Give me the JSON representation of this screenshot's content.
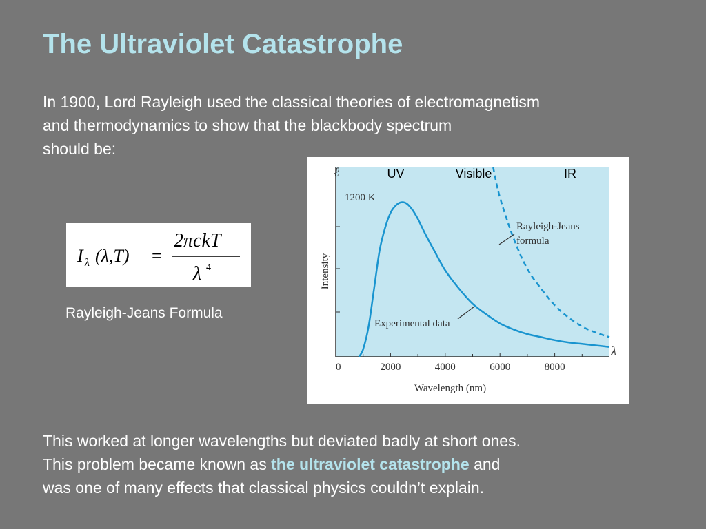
{
  "slide": {
    "title": "The Ultraviolet Catastrophe",
    "intro_lines": [
      "In 1900, Lord Rayleigh used the classical theories of electromagnetism",
      "and thermodynamics to show that the blackbody spectrum",
      "should be:"
    ],
    "formula": {
      "lhs_symbol": "I",
      "lhs_subscript": "λ",
      "lhs_args": "(λ,T)",
      "equals": "=",
      "numerator": "2πckT",
      "denominator_base": "λ",
      "denominator_exponent": "4"
    },
    "formula_caption": "Rayleigh-Jeans Formula",
    "outro": {
      "line1": "This worked at longer wavelengths but deviated badly at short ones.",
      "line2_before": "This problem became known as ",
      "line2_highlight": "the ultraviolet catastrophe",
      "line2_after": " and",
      "line3": "was one of many effects that classical physics couldn’t explain."
    },
    "colors": {
      "background": "#777777",
      "title": "#b4e3ec",
      "highlight": "#b4e3ec",
      "plot_background": "#c4e6f1",
      "curve": "#1994cf"
    }
  },
  "chart_data": {
    "type": "line",
    "ylabel": "Intensity",
    "y_axis_symbol": "ℓ",
    "xlabel": "Wavelength (nm)",
    "x_axis_symbol": "λ",
    "xlim": [
      0,
      10000
    ],
    "x_ticks": [
      0,
      2000,
      4000,
      6000,
      8000
    ],
    "x_tick_labels": [
      "0",
      "2000",
      "4000",
      "6000",
      "8000"
    ],
    "y_units": "arbitrary",
    "ylim": [
      0,
      1.25
    ],
    "temperature_label": "1200 K",
    "region_labels": [
      "UV",
      "Visible",
      "IR"
    ],
    "grid": false,
    "series": [
      {
        "name": "Experimental data",
        "style": "solid",
        "x": [
          850,
          1000,
          1200,
          1400,
          1600,
          1800,
          2000,
          2200,
          2400,
          2600,
          2800,
          3000,
          3300,
          3600,
          4000,
          4500,
          5000,
          5500,
          6000,
          6500,
          7000,
          7500,
          8000,
          8500,
          9000,
          9500,
          10000
        ],
        "y": [
          0.0,
          0.05,
          0.2,
          0.45,
          0.7,
          0.85,
          0.95,
          1.0,
          1.02,
          1.01,
          0.97,
          0.91,
          0.8,
          0.7,
          0.57,
          0.45,
          0.35,
          0.28,
          0.22,
          0.18,
          0.15,
          0.13,
          0.11,
          0.095,
          0.085,
          0.075,
          0.065
        ]
      },
      {
        "name": "Rayleigh-Jeans formula",
        "style": "dashed",
        "x": [
          5750,
          6000,
          6500,
          7000,
          7500,
          8000,
          8500,
          9000,
          9500,
          10000
        ],
        "y": [
          1.25,
          1.05,
          0.78,
          0.58,
          0.45,
          0.34,
          0.26,
          0.2,
          0.16,
          0.13
        ]
      }
    ],
    "annotations": [
      {
        "text": "Rayleigh-Jeans",
        "target": "Rayleigh-Jeans formula"
      },
      {
        "text": "formula",
        "target": "Rayleigh-Jeans formula"
      },
      {
        "text": "Experimental data",
        "target": "Experimental data"
      }
    ]
  }
}
